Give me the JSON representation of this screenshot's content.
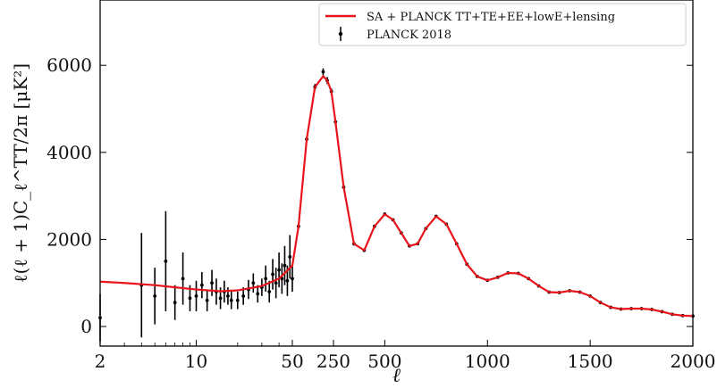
{
  "chart_data": {
    "type": "line",
    "xlabel": "ℓ",
    "ylabel": "ℓ(ℓ + 1)C_ℓ^TT/2π [μK²]",
    "x_scale": "hybrid: log for ℓ in [2,50], linear for ℓ in [50,2000]",
    "xlim": [
      2,
      2000
    ],
    "ylim": [
      -450,
      7500
    ],
    "x_ticks": [
      {
        "value": 2,
        "label": "2"
      },
      {
        "value": 10,
        "label": "10"
      },
      {
        "value": 50,
        "label": "50"
      },
      {
        "value": 250,
        "label": "250"
      },
      {
        "value": 500,
        "label": "500"
      },
      {
        "value": 1000,
        "label": "1000"
      },
      {
        "value": 1500,
        "label": "1500"
      },
      {
        "value": 2000,
        "label": "2000"
      }
    ],
    "y_ticks": [
      {
        "value": 0,
        "label": "0"
      },
      {
        "value": 2000,
        "label": "2000"
      },
      {
        "value": 4000,
        "label": "4000"
      },
      {
        "value": 6000,
        "label": "6000"
      }
    ],
    "legend_position": "top-right",
    "colors": {
      "model": "#e8141b",
      "data": "#000000"
    },
    "series": [
      {
        "name": "SA + PLANCK TT+TE+EE+lowE+lensing",
        "kind": "line",
        "x": [
          2,
          3,
          5,
          7,
          10,
          15,
          20,
          30,
          40,
          50,
          80,
          120,
          160,
          200,
          220,
          240,
          260,
          300,
          350,
          400,
          450,
          500,
          540,
          580,
          620,
          660,
          700,
          750,
          800,
          850,
          900,
          950,
          1000,
          1050,
          1100,
          1150,
          1200,
          1250,
          1300,
          1350,
          1400,
          1450,
          1500,
          1550,
          1600,
          1650,
          1700,
          1750,
          1800,
          1850,
          1900,
          1950,
          2000
        ],
        "y": [
          1030,
          1000,
          950,
          900,
          850,
          810,
          830,
          930,
          1100,
          1400,
          2300,
          4300,
          5500,
          5750,
          5650,
          5400,
          4700,
          3200,
          1900,
          1750,
          2300,
          2580,
          2450,
          2150,
          1850,
          1900,
          2250,
          2530,
          2350,
          1900,
          1430,
          1150,
          1060,
          1130,
          1230,
          1220,
          1100,
          930,
          790,
          780,
          820,
          790,
          700,
          550,
          440,
          400,
          410,
          410,
          390,
          340,
          280,
          250,
          240
        ]
      },
      {
        "name": "PLANCK 2018",
        "kind": "errorbar",
        "x": [
          2,
          4,
          5,
          6,
          7,
          8,
          9,
          10,
          11,
          12,
          13,
          14,
          15,
          16,
          17,
          18,
          20,
          22,
          24,
          26,
          28,
          30,
          32,
          34,
          36,
          38,
          40,
          42,
          44,
          46,
          48,
          50,
          80,
          120,
          160,
          200,
          220,
          240,
          260,
          300,
          350,
          400,
          450,
          500,
          540,
          580,
          620,
          660,
          700,
          750,
          800,
          850,
          900,
          950,
          1000,
          1050,
          1100,
          1150,
          1200,
          1250,
          1300,
          1350,
          1400,
          1450,
          1500,
          1550,
          1600,
          1650,
          1700,
          1750,
          1800,
          1850,
          1900,
          1950,
          2000
        ],
        "y": [
          200,
          950,
          700,
          1500,
          550,
          1100,
          650,
          700,
          950,
          600,
          1000,
          800,
          650,
          800,
          700,
          600,
          600,
          700,
          850,
          1000,
          750,
          900,
          1100,
          800,
          1200,
          1000,
          1300,
          1100,
          1400,
          1050,
          1600,
          1100,
          2300,
          4300,
          5500,
          5850,
          5650,
          5400,
          4700,
          3200,
          1900,
          1750,
          2300,
          2580,
          2450,
          2150,
          1850,
          1900,
          2250,
          2530,
          2350,
          1900,
          1430,
          1150,
          1060,
          1130,
          1230,
          1220,
          1100,
          930,
          790,
          780,
          820,
          790,
          700,
          550,
          440,
          400,
          410,
          410,
          390,
          340,
          280,
          250,
          240
        ],
        "err": [
          550,
          1200,
          650,
          1150,
          400,
          600,
          300,
          350,
          300,
          250,
          300,
          300,
          250,
          250,
          200,
          200,
          200,
          200,
          220,
          220,
          200,
          200,
          300,
          250,
          350,
          350,
          400,
          350,
          450,
          350,
          500,
          300,
          60,
          60,
          70,
          80,
          80,
          70,
          60,
          50,
          40,
          40,
          40,
          40,
          30,
          30,
          30,
          30,
          30,
          30,
          30,
          30,
          30,
          25,
          25,
          25,
          25,
          25,
          25,
          25,
          20,
          20,
          20,
          20,
          20,
          20,
          20,
          20,
          20,
          20,
          20,
          20,
          20,
          20,
          20
        ]
      }
    ]
  }
}
